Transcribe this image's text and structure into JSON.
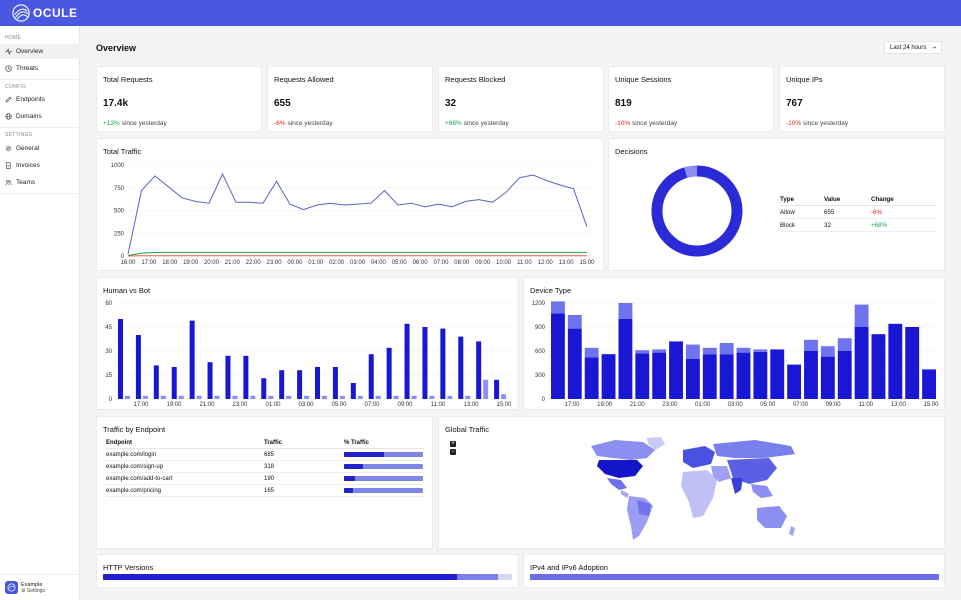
{
  "app": {
    "brand": "OCULE"
  },
  "sidebar": {
    "sections": [
      {
        "label": "HOME",
        "items": [
          {
            "label": "Overview",
            "icon": "activity-icon",
            "active": true
          },
          {
            "label": "Threats",
            "icon": "clock-icon"
          }
        ]
      },
      {
        "label": "CONFIG",
        "items": [
          {
            "label": "Endpoints",
            "icon": "pencil-icon"
          },
          {
            "label": "Domains",
            "icon": "globe-icon"
          }
        ]
      },
      {
        "label": "SETTINGS",
        "items": [
          {
            "label": "General",
            "icon": "gear-icon"
          },
          {
            "label": "Invoices",
            "icon": "document-icon"
          },
          {
            "label": "Teams",
            "icon": "people-icon"
          }
        ]
      }
    ],
    "footer": {
      "name": "Example",
      "link": "⚙ Settings"
    }
  },
  "header": {
    "title": "Overview",
    "range": "Last 24 hours"
  },
  "kpis": [
    {
      "title": "Total Requests",
      "value": "17.4k",
      "delta": "+13%",
      "delta_sign": "pos",
      "suffix": "since yesterday"
    },
    {
      "title": "Requests Allowed",
      "value": "655",
      "delta": "-6%",
      "delta_sign": "neg",
      "suffix": "since yesterday"
    },
    {
      "title": "Requests Blocked",
      "value": "32",
      "delta": "+68%",
      "delta_sign": "pos",
      "suffix": "since yesterday"
    },
    {
      "title": "Unique Sessions",
      "value": "819",
      "delta": "-10%",
      "delta_sign": "neg",
      "suffix": "since yesterday"
    },
    {
      "title": "Unique IPs",
      "value": "767",
      "delta": "-10%",
      "delta_sign": "neg",
      "suffix": "since yesterday"
    }
  ],
  "total_traffic": {
    "title": "Total Traffic",
    "yticks": [
      "1000",
      "750",
      "500",
      "250",
      "0"
    ],
    "xticks": [
      "16:00",
      "17:00",
      "18:00",
      "19:00",
      "20:00",
      "21:00",
      "22:00",
      "23:00",
      "00:00",
      "01:00",
      "02:00",
      "03:00",
      "04:00",
      "05:00",
      "06:00",
      "07:00",
      "08:00",
      "09:00",
      "10:00",
      "11:00",
      "12:00",
      "13:00",
      "15:00"
    ],
    "series": [
      {
        "color": "#5b63c7",
        "values": [
          20,
          720,
          880,
          760,
          640,
          600,
          580,
          900,
          590,
          590,
          580,
          820,
          570,
          510,
          560,
          580,
          560,
          570,
          580,
          720,
          560,
          580,
          540,
          570,
          540,
          600,
          620,
          590,
          700,
          860,
          890,
          830,
          780,
          740,
          320
        ]
      },
      {
        "color": "#16a34a",
        "values": [
          5,
          30,
          40,
          40,
          40,
          40,
          40,
          40,
          40,
          40,
          40,
          40,
          40,
          40,
          40,
          40,
          40,
          40,
          40,
          40,
          40,
          40,
          40,
          40,
          40,
          40,
          40,
          40,
          40,
          40,
          40,
          40,
          40,
          40,
          40
        ]
      },
      {
        "color": "#e8613c",
        "values": [
          0,
          3,
          3,
          3,
          3,
          3,
          3,
          3,
          3,
          3,
          3,
          3,
          3,
          3,
          3,
          3,
          3,
          3,
          3,
          3,
          3,
          3,
          3,
          3,
          3,
          3,
          3,
          3,
          3,
          3,
          3,
          3,
          3,
          3,
          3
        ]
      }
    ]
  },
  "decisions": {
    "title": "Decisions",
    "headers": [
      "Type",
      "Value",
      "Change"
    ],
    "rows": [
      {
        "type": "Allow",
        "value": "655",
        "change": "-6%",
        "sign": "neg"
      },
      {
        "type": "Block",
        "value": "32",
        "change": "+68%",
        "sign": "pos"
      }
    ],
    "colors": {
      "allow": "#2a2ad6",
      "block": "#8b8ff0"
    },
    "fractions": {
      "allow": 0.953,
      "block": 0.047
    }
  },
  "human_vs_bot": {
    "title": "Human vs Bot",
    "yticks": [
      "60",
      "45",
      "30",
      "15",
      "0"
    ],
    "xticks": [
      "17:00",
      "19:00",
      "21:00",
      "23:00",
      "01:00",
      "03:00",
      "05:00",
      "07:00",
      "09:00",
      "11:00",
      "13:00",
      "15:00"
    ],
    "human_color": "#1a17d4",
    "bot_color": "#8c90f0",
    "human": [
      50,
      40,
      21,
      20,
      49,
      23,
      27,
      27,
      13,
      18,
      18,
      20,
      20,
      10,
      28,
      32,
      47,
      45,
      44,
      39,
      36,
      12
    ],
    "bot": [
      2,
      2,
      2,
      2,
      2,
      2,
      2,
      2,
      2,
      2,
      2,
      2,
      2,
      2,
      2,
      2,
      2,
      2,
      2,
      2,
      12,
      3
    ]
  },
  "device_type": {
    "title": "Device Type",
    "yticks": [
      "1200",
      "900",
      "600",
      "300",
      "0"
    ],
    "xticks": [
      "17:00",
      "19:00",
      "21:00",
      "23:00",
      "01:00",
      "03:00",
      "05:00",
      "07:00",
      "09:00",
      "11:00",
      "13:00",
      "15:00"
    ],
    "primary_color": "#1a17d4",
    "secondary_color": "#6f74ee",
    "primary": [
      1070,
      880,
      520,
      560,
      1000,
      570,
      580,
      720,
      500,
      560,
      560,
      580,
      590,
      620,
      430,
      600,
      530,
      600,
      900,
      810,
      940,
      900,
      370
    ],
    "secondary": [
      150,
      170,
      120,
      0,
      200,
      40,
      40,
      0,
      180,
      80,
      140,
      60,
      30,
      0,
      0,
      140,
      130,
      160,
      280,
      0,
      0,
      0,
      0
    ]
  },
  "endpoints": {
    "title": "Traffic by Endpoint",
    "headers": [
      "Endpoint",
      "Traffic",
      "% Traffic"
    ],
    "rows": [
      {
        "endpoint": "example.com/login",
        "traffic": "685",
        "pct": 0.5
      },
      {
        "endpoint": "example.com/sign-up",
        "traffic": "318",
        "pct": 0.24
      },
      {
        "endpoint": "example.com/add-to-cart",
        "traffic": "190",
        "pct": 0.14
      },
      {
        "endpoint": "example.com/pricing",
        "traffic": "165",
        "pct": 0.12
      }
    ]
  },
  "global_traffic": {
    "title": "Global Traffic",
    "zoom_in": "+",
    "zoom_out": "−"
  },
  "http_versions": {
    "title": "HTTP Versions",
    "segments": [
      {
        "pct": 0.865,
        "color": "#2020d0"
      },
      {
        "pct": 0.1,
        "color": "#7c80ee"
      }
    ]
  },
  "ip_versions": {
    "title": "IPv4 and IPv6 Adoption",
    "segments": [
      {
        "pct": 1.0,
        "color": "#6a6fe8"
      }
    ]
  }
}
